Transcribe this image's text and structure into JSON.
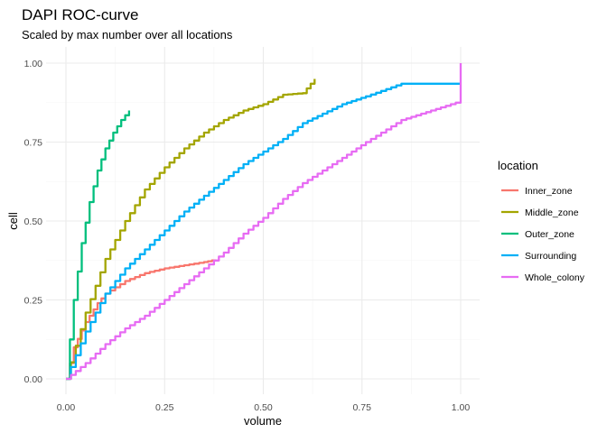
{
  "chart_data": {
    "type": "line",
    "title": "DAPI ROC-curve",
    "subtitle": "Scaled by max number over all locations",
    "xlabel": "volume",
    "ylabel": "cell",
    "xlim": [
      0,
      1
    ],
    "ylim": [
      0,
      1
    ],
    "x_ticks": [
      "0.00",
      "0.25",
      "0.50",
      "0.75",
      "1.00"
    ],
    "y_ticks": [
      "0.00",
      "0.25",
      "0.50",
      "0.75",
      "1.00"
    ],
    "grid": true,
    "legend": {
      "title": "location",
      "position": "right"
    },
    "series": [
      {
        "name": "Inner_zone",
        "color": "#F8766D",
        "x": [
          0,
          0.02,
          0.05,
          0.08,
          0.1,
          0.15,
          0.2,
          0.25,
          0.3,
          0.35,
          0.38
        ],
        "y": [
          0,
          0.1,
          0.18,
          0.24,
          0.27,
          0.31,
          0.335,
          0.35,
          0.36,
          0.37,
          0.378
        ]
      },
      {
        "name": "Middle_zone",
        "color": "#A3A500",
        "x": [
          0,
          0.05,
          0.1,
          0.15,
          0.2,
          0.25,
          0.3,
          0.35,
          0.4,
          0.45,
          0.5,
          0.55,
          0.6,
          0.63
        ],
        "y": [
          0,
          0.21,
          0.38,
          0.5,
          0.6,
          0.67,
          0.73,
          0.78,
          0.82,
          0.85,
          0.87,
          0.9,
          0.905,
          0.95
        ]
      },
      {
        "name": "Outer_zone",
        "color": "#00BF7D",
        "x": [
          0,
          0.02,
          0.04,
          0.06,
          0.08,
          0.1,
          0.12,
          0.14,
          0.16
        ],
        "y": [
          0,
          0.25,
          0.43,
          0.56,
          0.66,
          0.73,
          0.78,
          0.82,
          0.85
        ]
      },
      {
        "name": "Surrounding",
        "color": "#00B0F6",
        "x": [
          0,
          0.05,
          0.1,
          0.15,
          0.2,
          0.25,
          0.3,
          0.35,
          0.4,
          0.45,
          0.5,
          0.55,
          0.6,
          0.65,
          0.7,
          0.76,
          0.85,
          1.0
        ],
        "y": [
          0,
          0.15,
          0.27,
          0.35,
          0.41,
          0.47,
          0.53,
          0.58,
          0.63,
          0.68,
          0.72,
          0.76,
          0.81,
          0.84,
          0.87,
          0.895,
          0.935,
          0.935
        ]
      },
      {
        "name": "Whole_colony",
        "color": "#E76BF3",
        "x": [
          0,
          0.05,
          0.1,
          0.15,
          0.2,
          0.25,
          0.3,
          0.35,
          0.4,
          0.45,
          0.5,
          0.55,
          0.6,
          0.65,
          0.7,
          0.76,
          0.85,
          1.0,
          1.0
        ],
        "y": [
          0,
          0.05,
          0.11,
          0.16,
          0.2,
          0.25,
          0.3,
          0.35,
          0.4,
          0.46,
          0.51,
          0.57,
          0.62,
          0.66,
          0.7,
          0.75,
          0.82,
          0.88,
          1.0
        ]
      }
    ]
  }
}
